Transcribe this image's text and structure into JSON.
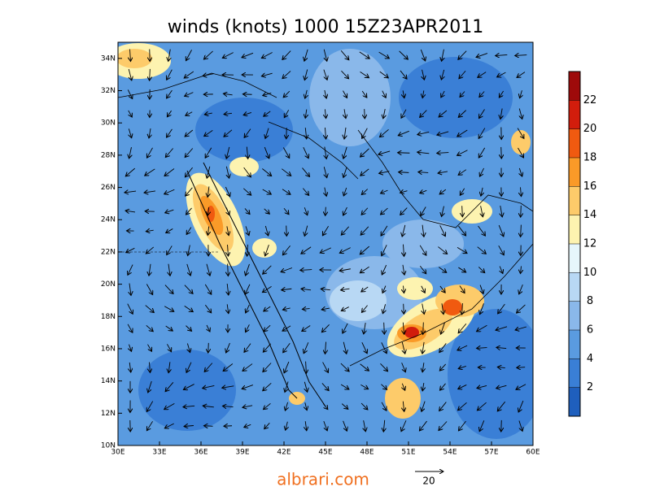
{
  "map": {
    "title": "winds (knots) 1000 15Z23APR2011",
    "xlim": [
      30,
      60
    ],
    "ylim": [
      10,
      35
    ],
    "xticks": [
      {
        "value": 30,
        "label": "30E"
      },
      {
        "value": 33,
        "label": "33E"
      },
      {
        "value": 36,
        "label": "36E"
      },
      {
        "value": 39,
        "label": "39E"
      },
      {
        "value": 42,
        "label": "42E"
      },
      {
        "value": 45,
        "label": "45E"
      },
      {
        "value": 48,
        "label": "48E"
      },
      {
        "value": 51,
        "label": "51E"
      },
      {
        "value": 54,
        "label": "54E"
      },
      {
        "value": 57,
        "label": "57E"
      },
      {
        "value": 60,
        "label": "60E"
      }
    ],
    "yticks": [
      {
        "value": 10,
        "label": "10N"
      },
      {
        "value": 12,
        "label": "12N"
      },
      {
        "value": 14,
        "label": "14N"
      },
      {
        "value": 16,
        "label": "16N"
      },
      {
        "value": 18,
        "label": "18N"
      },
      {
        "value": 20,
        "label": "20N"
      },
      {
        "value": 22,
        "label": "22N"
      },
      {
        "value": 24,
        "label": "24N"
      },
      {
        "value": 26,
        "label": "26N"
      },
      {
        "value": 28,
        "label": "28N"
      },
      {
        "value": 30,
        "label": "30N"
      },
      {
        "value": 32,
        "label": "32N"
      },
      {
        "value": 34,
        "label": "34N"
      }
    ],
    "colorbar": {
      "lim": [
        0,
        24
      ],
      "ticks": [
        2,
        4,
        6,
        8,
        10,
        12,
        14,
        16,
        18,
        20,
        22
      ],
      "colors": [
        "#1f5fbd",
        "#3a7fd6",
        "#5a9be0",
        "#8ab8ea",
        "#b8d8f4",
        "#e6f6fb",
        "#fdf3b0",
        "#fdcb6a",
        "#fa9a28",
        "#f05a10",
        "#d21d0c",
        "#9e0a0a"
      ]
    },
    "reference_vector": 20
  },
  "footer": "albrari.com"
}
